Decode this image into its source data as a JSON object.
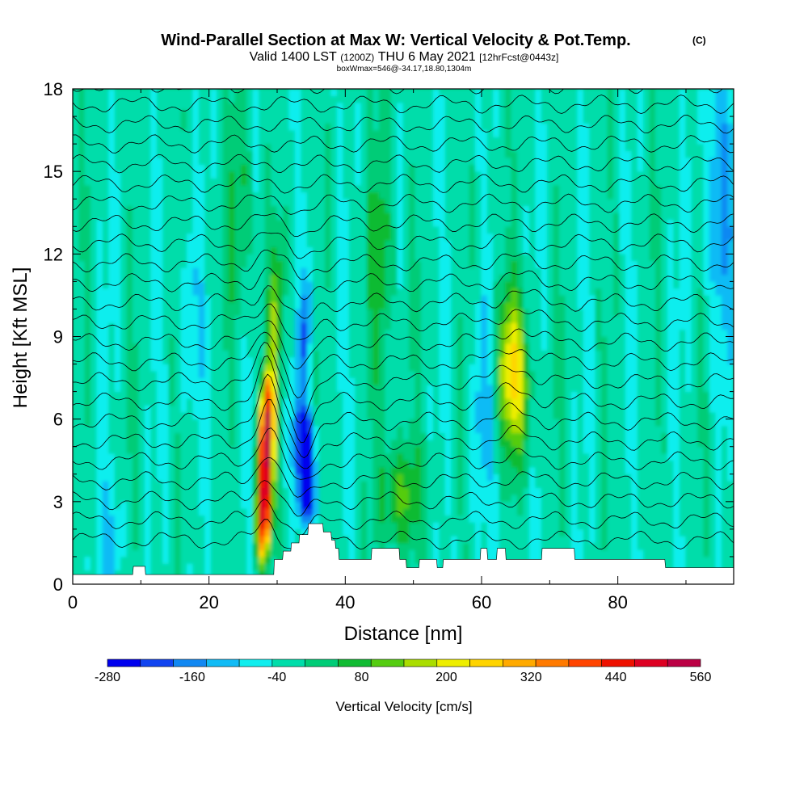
{
  "chart_data": {
    "type": "contour",
    "title": "Wind-Parallel Section at Max W: Vertical Velocity & Pot.Temp.",
    "title_mark": "(C)",
    "subtitle": {
      "part1": "Valid 1400 LST",
      "part2": "(1200Z)",
      "part3": "THU 6 May 2021",
      "part4": "[12hrFcst@0443z]"
    },
    "subtitle2": "boxWmax=546@-34.17,18.80,1304m",
    "xlabel": "Distance [nm]",
    "ylabel": "Height [Kft MSL]",
    "x_ticks": [
      "0",
      "20",
      "40",
      "60",
      "80"
    ],
    "y_ticks": [
      "0",
      "3",
      "6",
      "9",
      "12",
      "15",
      "18"
    ],
    "xlim": [
      0,
      97
    ],
    "ylim": [
      0,
      18
    ],
    "colorbar": {
      "label": "Vertical Velocity [cm/s]",
      "tick_labels": [
        "-280",
        "-160",
        "-40",
        "80",
        "200",
        "320",
        "440",
        "560"
      ],
      "range": [
        -280,
        560
      ],
      "colors": [
        "#0000ee",
        "#1144f0",
        "#1188f2",
        "#11bbf5",
        "#11eeee",
        "#00ddaa",
        "#00cc77",
        "#11bb33",
        "#55cc11",
        "#aadd00",
        "#eeee00",
        "#ffd400",
        "#ffaa00",
        "#ff7a00",
        "#ff4400",
        "#ee1100",
        "#dd0022",
        "#bb0044"
      ]
    },
    "features": {
      "updraft_max": {
        "x": 28.3,
        "y_range": [
          0.6,
          9.0
        ],
        "max_value": 546
      },
      "downdraft_min": {
        "x": 34.3,
        "y_range": [
          1.0,
          7.5
        ],
        "min_value": -280
      },
      "secondary_updraft": {
        "x": 64.8,
        "y_range": [
          4.5,
          10.5
        ],
        "max_value": 200
      }
    },
    "terrain_kft": [
      [
        0,
        0.35
      ],
      [
        8.8,
        0.35
      ],
      [
        8.9,
        0.65
      ],
      [
        10.6,
        0.65
      ],
      [
        10.7,
        0.35
      ],
      [
        29.5,
        0.35
      ],
      [
        29.6,
        0.9
      ],
      [
        30.8,
        0.9
      ],
      [
        30.9,
        1.2
      ],
      [
        32.0,
        1.2
      ],
      [
        32.1,
        1.5
      ],
      [
        33.2,
        1.5
      ],
      [
        33.3,
        1.8
      ],
      [
        34.5,
        1.8
      ],
      [
        34.6,
        2.2
      ],
      [
        36.7,
        2.2
      ],
      [
        36.8,
        1.9
      ],
      [
        37.9,
        1.9
      ],
      [
        38.0,
        1.6
      ],
      [
        38.5,
        1.6
      ],
      [
        38.6,
        1.3
      ],
      [
        39.0,
        1.3
      ],
      [
        39.1,
        0.9
      ],
      [
        43.8,
        0.9
      ],
      [
        43.9,
        1.3
      ],
      [
        47.9,
        1.3
      ],
      [
        48.0,
        0.9
      ],
      [
        48.9,
        0.9
      ],
      [
        49.0,
        0.6
      ],
      [
        50.8,
        0.6
      ],
      [
        50.9,
        0.9
      ],
      [
        53.4,
        0.9
      ],
      [
        53.5,
        0.6
      ],
      [
        54.3,
        0.6
      ],
      [
        54.4,
        0.9
      ],
      [
        59.8,
        0.9
      ],
      [
        59.9,
        1.3
      ],
      [
        60.8,
        1.3
      ],
      [
        60.9,
        0.9
      ],
      [
        62.2,
        0.9
      ],
      [
        62.3,
        1.3
      ],
      [
        63.5,
        1.3
      ],
      [
        63.6,
        0.9
      ],
      [
        68.8,
        0.9
      ],
      [
        68.9,
        1.3
      ],
      [
        73.6,
        1.3
      ],
      [
        73.7,
        0.9
      ],
      [
        86.9,
        0.9
      ],
      [
        87.0,
        0.6
      ],
      [
        97,
        0.6
      ]
    ],
    "theta_contour_levels": 24
  }
}
